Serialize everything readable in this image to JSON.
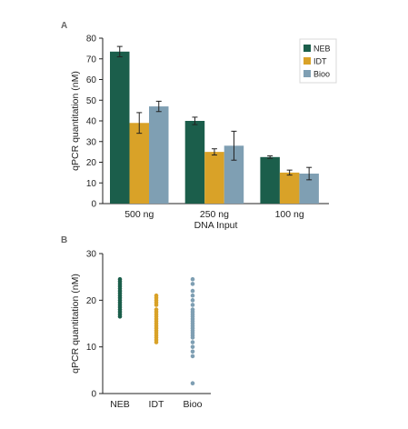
{
  "colors": {
    "NEB": "#1b5e4b",
    "IDT": "#d9a228",
    "Bioo": "#7f9fb3",
    "axis": "#222222"
  },
  "chart_data": [
    {
      "panel": "A",
      "type": "bar",
      "xlabel": "DNA Input",
      "ylabel": "qPCR quantitation (nM)",
      "ylim": [
        0,
        80
      ],
      "yticks": [
        0,
        10,
        20,
        30,
        40,
        50,
        60,
        70,
        80
      ],
      "categories": [
        "500 ng",
        "250 ng",
        "100 ng"
      ],
      "legend_position": "top-right",
      "series": [
        {
          "name": "NEB",
          "values": [
            73.5,
            40,
            22.5
          ],
          "errors": [
            2.5,
            1.8,
            0.6
          ]
        },
        {
          "name": "IDT",
          "values": [
            39,
            25,
            15
          ],
          "errors": [
            5,
            1.5,
            1.2
          ]
        },
        {
          "name": "Bioo",
          "values": [
            47,
            28,
            14.5
          ],
          "errors": [
            2.5,
            7,
            3
          ]
        }
      ],
      "grid": false
    },
    {
      "panel": "B",
      "type": "scatter",
      "xlabel": "",
      "ylabel": "qPCR quantitation (nM)",
      "ylim": [
        0,
        30
      ],
      "yticks": [
        0,
        10,
        20,
        30
      ],
      "categories": [
        "NEB",
        "IDT",
        "Bioo"
      ],
      "series": [
        {
          "name": "NEB",
          "values": [
            24.5,
            24,
            23.5,
            23,
            22.5,
            22,
            21.5,
            21,
            20.5,
            20,
            19.5,
            19,
            18.5,
            18,
            17.5,
            17,
            16.5
          ]
        },
        {
          "name": "IDT",
          "values": [
            21,
            20.5,
            20,
            19.5,
            19,
            18,
            17.5,
            17,
            16.5,
            16,
            15.5,
            15,
            14.5,
            14,
            13.5,
            13,
            12.5,
            12,
            11.5,
            11
          ]
        },
        {
          "name": "Bioo",
          "values": [
            24.5,
            23.5,
            22,
            21,
            20,
            19,
            18,
            17.5,
            17,
            16.5,
            16,
            15.5,
            15,
            14.5,
            14,
            13.5,
            13,
            12.5,
            12,
            11,
            10,
            9,
            8,
            2.2
          ]
        }
      ],
      "grid": false
    }
  ]
}
